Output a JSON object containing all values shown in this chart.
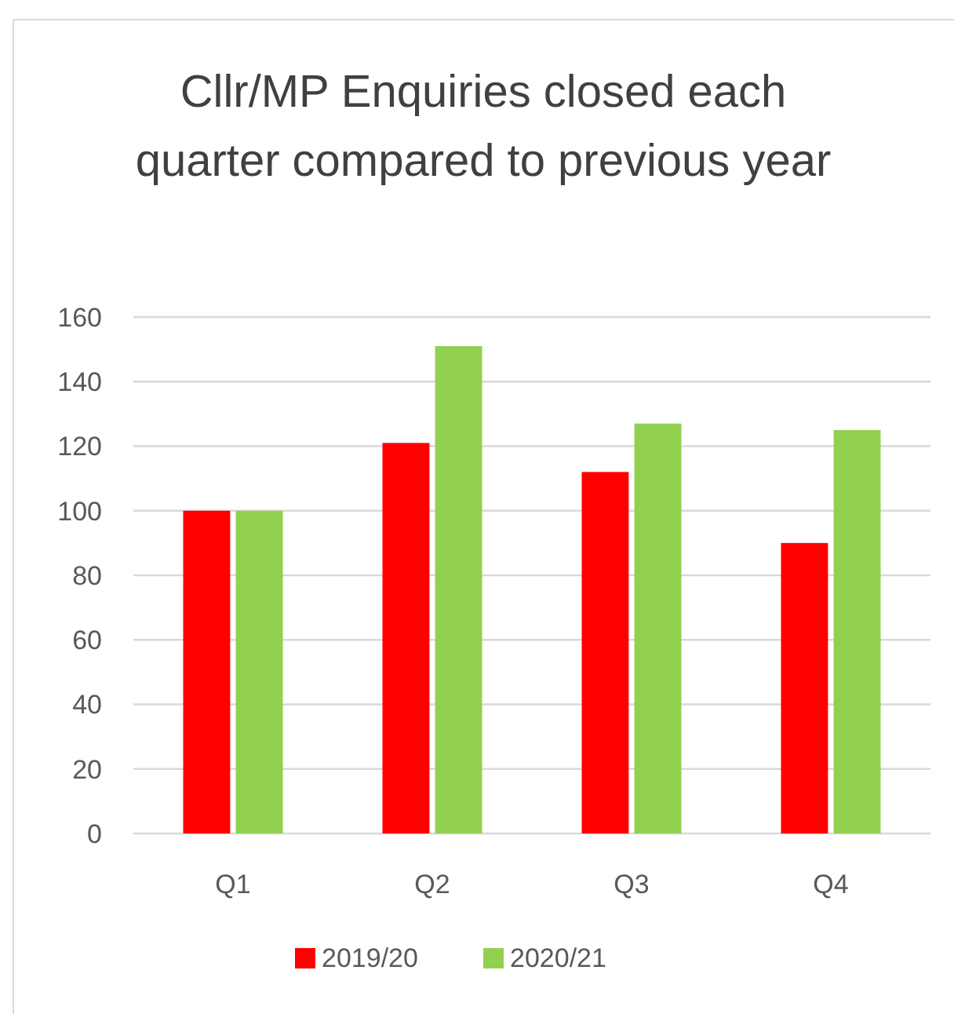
{
  "chart_data": {
    "type": "bar",
    "title": "Cllr/MP Enquiries closed each quarter compared to previous year",
    "categories": [
      "Q1",
      "Q2",
      "Q3",
      "Q4"
    ],
    "series": [
      {
        "name": "2019/20",
        "color": "#ff0000",
        "values": [
          100,
          121,
          112,
          90
        ]
      },
      {
        "name": "2020/21",
        "color": "#92d050",
        "values": [
          100,
          151,
          127,
          125
        ]
      }
    ],
    "ylim": [
      0,
      160
    ],
    "yticks": [
      0,
      20,
      40,
      60,
      80,
      100,
      120,
      140,
      160
    ],
    "grid": "y",
    "legend": "bottom"
  }
}
